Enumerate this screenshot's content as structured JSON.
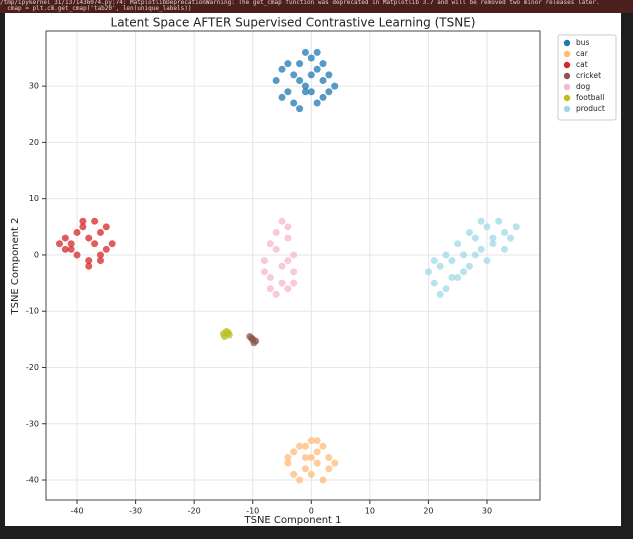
{
  "header": {
    "warning_lines": [
      "/tmp/ipykernel_31/1371436074.py:74: MatplotlibDeprecationWarning: The get_cmap function was deprecated in Matplotlib 3.7 and will be removed two minor releases later.",
      "  cmap = plt.cm.get_cmap('tab20', len(unique_labels))"
    ]
  },
  "chart_data": {
    "type": "scatter",
    "title": "Latent Space AFTER Supervised Contrastive Learning (TSNE)",
    "x_label": "TSNE Component 1",
    "y_label": "TSNE Component 2",
    "xlim": [
      -45.3,
      39.05
    ],
    "ylim": [
      -43.55,
      39.8
    ],
    "xticks": [
      -40,
      -30,
      -20,
      -10,
      0,
      10,
      20,
      30
    ],
    "yticks": [
      -40,
      -30,
      -20,
      -10,
      0,
      10,
      20,
      30
    ],
    "grid": true,
    "legend": "outside-upper-right",
    "series": [
      {
        "name": "bus",
        "color": "#1f77b4",
        "x": [
          -6,
          -5,
          -4,
          -3,
          -2,
          -1,
          0,
          1,
          2,
          3,
          4,
          -5,
          -3,
          -1,
          1,
          3,
          -4,
          -2,
          0,
          2,
          -1,
          1,
          0,
          -2,
          2
        ],
        "y": [
          31,
          33,
          29,
          32,
          34,
          30,
          35,
          33,
          31,
          29,
          30,
          28,
          27,
          29,
          27,
          32,
          34,
          31,
          29,
          34,
          36,
          36,
          32,
          26,
          28
        ]
      },
      {
        "name": "car",
        "color": "#ffbb78",
        "x": [
          -4,
          -3,
          -2,
          -1,
          0,
          1,
          2,
          3,
          -3,
          -1,
          1,
          3,
          -4,
          -2,
          0,
          2,
          4,
          -1,
          1,
          0
        ],
        "y": [
          -37,
          -35,
          -34,
          -36,
          -33,
          -35,
          -34,
          -36,
          -39,
          -38,
          -37,
          -38,
          -36,
          -40,
          -39,
          -40,
          -37,
          -34,
          -33,
          -36
        ]
      },
      {
        "name": "cat",
        "color": "#d62728",
        "x": [
          -43,
          -42,
          -41,
          -40,
          -39,
          -38,
          -37,
          -36,
          -35,
          -34,
          -42,
          -40,
          -38,
          -36,
          -39,
          -37,
          -35,
          -41,
          -38,
          -36
        ],
        "y": [
          2,
          3,
          1,
          4,
          5,
          3,
          2,
          4,
          5,
          2,
          1,
          0,
          -1,
          0,
          6,
          6,
          1,
          2,
          -2,
          -1
        ]
      },
      {
        "name": "cricket",
        "color": "#8c564b",
        "x": [
          -10.5,
          -10,
          -9.5,
          -10.2,
          -9.8
        ],
        "y": [
          -14.5,
          -15,
          -15.3,
          -14.8,
          -15.6
        ]
      },
      {
        "name": "dog",
        "color": "#f7b6d2",
        "x": [
          -8,
          -7,
          -6,
          -5,
          -4,
          -3,
          -7,
          -5,
          -3,
          -6,
          -4,
          -8,
          -6,
          -4,
          -3,
          -5,
          -7,
          -4
        ],
        "y": [
          -1,
          2,
          4,
          6,
          3,
          0,
          -4,
          -5,
          -3,
          -7,
          -6,
          -3,
          1,
          -1,
          -5,
          -2,
          -6,
          5
        ]
      },
      {
        "name": "football",
        "color": "#bcbd22",
        "x": [
          -15,
          -14.5,
          -14,
          -14.8,
          -14.2
        ],
        "y": [
          -14,
          -13.6,
          -14.2,
          -14.5,
          -13.8
        ]
      },
      {
        "name": "product",
        "color": "#9edae5",
        "x": [
          20,
          21,
          22,
          23,
          24,
          25,
          26,
          27,
          28,
          29,
          30,
          31,
          32,
          33,
          34,
          35,
          21,
          23,
          25,
          27,
          29,
          31,
          33,
          22,
          24,
          26,
          28,
          30
        ],
        "y": [
          -3,
          -5,
          -2,
          -6,
          -1,
          -4,
          0,
          -2,
          3,
          1,
          5,
          2,
          6,
          4,
          3,
          5,
          -1,
          0,
          2,
          4,
          6,
          3,
          1,
          -7,
          -4,
          -3,
          0,
          -1
        ]
      }
    ]
  }
}
